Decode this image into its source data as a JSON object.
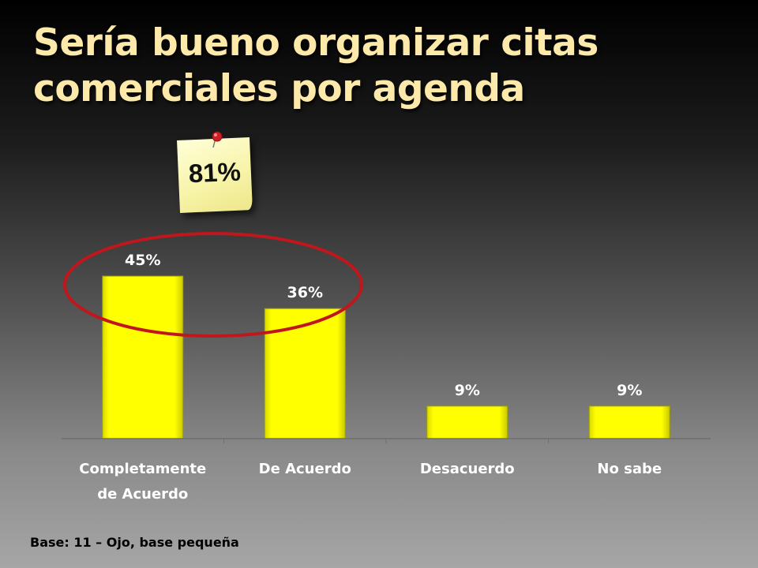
{
  "title": {
    "line1": "Sería bueno organizar citas",
    "line2": "comerciales por agenda"
  },
  "highlight": {
    "value": "81%"
  },
  "footnote": "Base: 11 – Ojo, base pequeña",
  "colors": {
    "bar": "#ffff00",
    "title": "#fde9a9",
    "ellipse": "#c0161c",
    "note": "#f7f3a6"
  },
  "chart_data": {
    "type": "bar",
    "categories": [
      [
        "Completamente",
        "de Acuerdo"
      ],
      [
        "De Acuerdo"
      ],
      [
        "Desacuerdo"
      ],
      [
        "No sabe"
      ]
    ],
    "values": [
      45,
      36,
      9,
      9
    ],
    "data_labels": [
      "45%",
      "36%",
      "9%",
      "9%"
    ],
    "ylim": [
      0,
      50
    ],
    "grid": false,
    "legend": "none"
  }
}
